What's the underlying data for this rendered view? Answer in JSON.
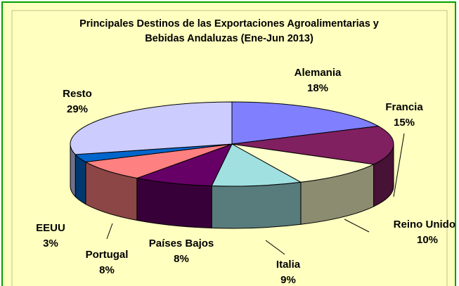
{
  "chart_data": {
    "type": "pie3d",
    "title": "Principales Destinos de las Exportaciones Agroalimentarias y Bebidas Andaluzas (Ene-Jun 2013)",
    "categories": [
      "Alemania",
      "Francia",
      "Reino Unido",
      "Italia",
      "Países Bajos",
      "Portugal",
      "EEUU",
      "Resto"
    ],
    "values": [
      18,
      15,
      10,
      9,
      8,
      8,
      3,
      29
    ],
    "value_labels": [
      "18%",
      "15%",
      "10%",
      "9%",
      "8%",
      "8%",
      "3%",
      "29%"
    ],
    "colors": [
      "#8080ff",
      "#802060",
      "#ffffcc",
      "#a0e0e0",
      "#660066",
      "#ff8080",
      "#0066cc",
      "#ccccff"
    ]
  }
}
